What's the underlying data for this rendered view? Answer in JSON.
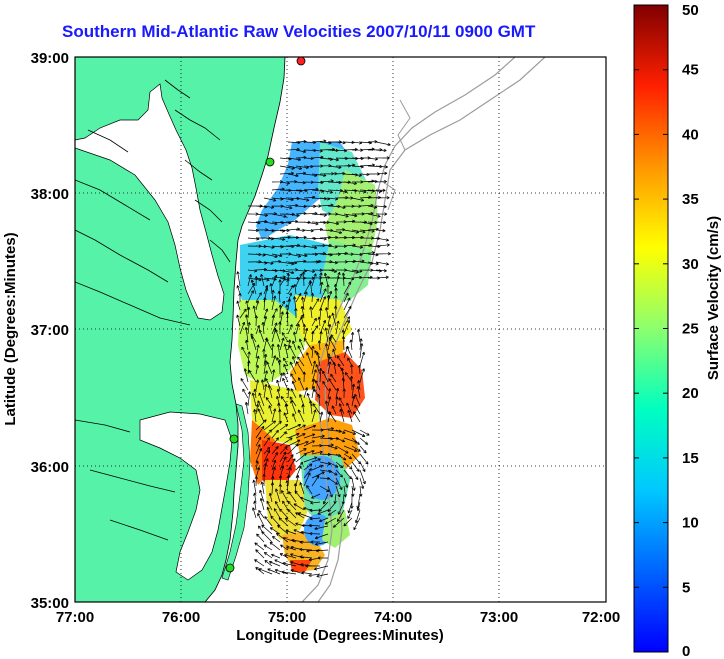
{
  "title": "Southern Mid-Atlantic Raw Velocities 2007/10/11 0900 GMT",
  "map": {
    "x_axis": {
      "label": "Longitude (Degrees:Minutes)",
      "ticks": [
        "77:00",
        "76:00",
        "75:00",
        "74:00",
        "73:00",
        "72:00"
      ],
      "range": [
        "77:00 W",
        "72:00 W"
      ]
    },
    "y_axis": {
      "label": "Latitude (Degrees:Minutes)",
      "ticks": [
        "39:00",
        "38:00",
        "37:00",
        "36:00",
        "35:00"
      ],
      "range": [
        "35:00 N",
        "39:00 N"
      ]
    },
    "grid": "dotted",
    "land_color": "#55f2a8",
    "bathymetry_color": "#9c9c9c",
    "vector_color": "#000000"
  },
  "colorbar": {
    "label": "Surface Velocity (cm/s)",
    "ticks": [
      "0",
      "5",
      "10",
      "15",
      "20",
      "25",
      "30",
      "35",
      "40",
      "45",
      "50"
    ],
    "min": 0,
    "max": 50,
    "colormap": "jet"
  },
  "sites": [
    {
      "color": "#ff2020"
    },
    {
      "color": "#22dd22"
    },
    {
      "color": "#22dd22"
    },
    {
      "color": "#22dd22"
    }
  ]
}
